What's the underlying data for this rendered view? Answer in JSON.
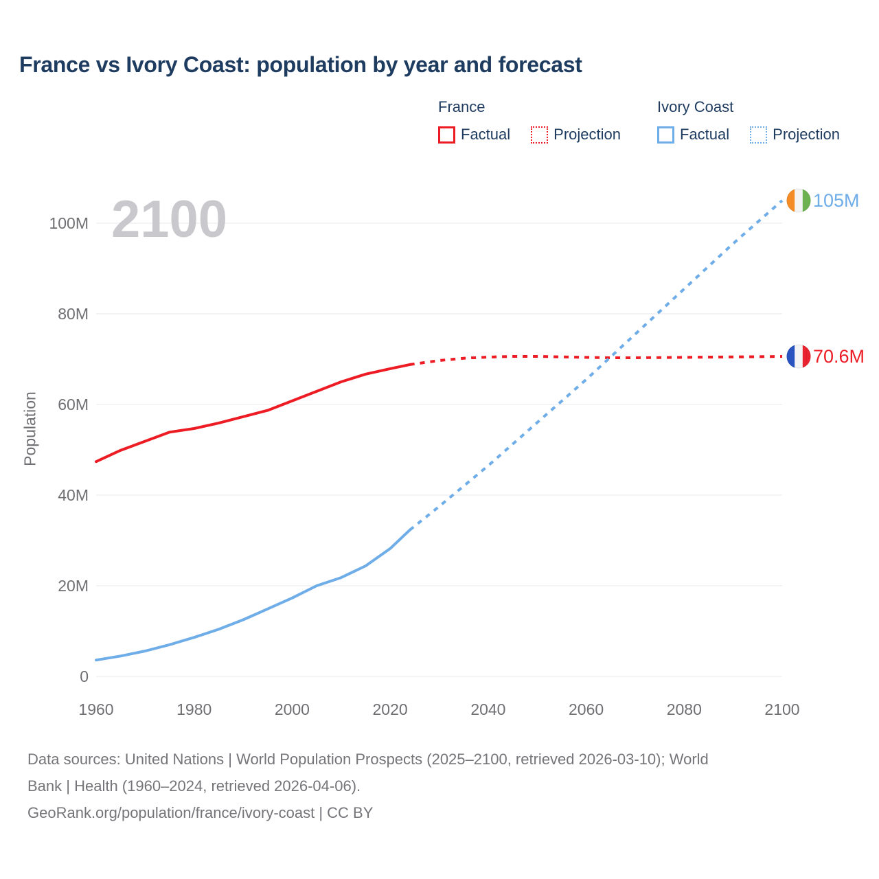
{
  "title": "France vs Ivory Coast: population by year and forecast",
  "legend": {
    "groups": [
      {
        "name": "France",
        "color": "#ed1c24",
        "items": [
          {
            "label": "Factual",
            "style": "solid"
          },
          {
            "label": "Projection",
            "style": "dotted"
          }
        ]
      },
      {
        "name": "Ivory Coast",
        "color": "#6fade8",
        "items": [
          {
            "label": "Factual",
            "style": "solid"
          },
          {
            "label": "Projection",
            "style": "dotted"
          }
        ]
      }
    ]
  },
  "chart_data": {
    "type": "line",
    "title": "France vs Ivory Coast: population by year and forecast",
    "xlabel": "",
    "ylabel": "Population",
    "unit": "millions of people",
    "watermark": "2100",
    "grid": true,
    "legend_position": "top-right",
    "xlim": [
      1960,
      2100
    ],
    "ylim": [
      0,
      100
    ],
    "x_ticks": [
      1960,
      1980,
      2000,
      2020,
      2040,
      2060,
      2080,
      2100
    ],
    "y_ticks": [
      {
        "value": 0,
        "label": "0"
      },
      {
        "value": 20,
        "label": "20M"
      },
      {
        "value": 40,
        "label": "40M"
      },
      {
        "value": 60,
        "label": "60M"
      },
      {
        "value": 80,
        "label": "80M"
      },
      {
        "value": 100,
        "label": "100M"
      }
    ],
    "series": [
      {
        "id": "france-factual",
        "name": "France Factual",
        "color": "#ed1c24",
        "style": "solid",
        "points": [
          [
            1960,
            47.4
          ],
          [
            1965,
            49.9
          ],
          [
            1970,
            51.9
          ],
          [
            1975,
            53.9
          ],
          [
            1980,
            54.7
          ],
          [
            1985,
            55.9
          ],
          [
            1990,
            57.3
          ],
          [
            1995,
            58.7
          ],
          [
            2000,
            60.8
          ],
          [
            2005,
            62.9
          ],
          [
            2010,
            65.0
          ],
          [
            2015,
            66.7
          ],
          [
            2020,
            67.9
          ],
          [
            2024,
            68.8
          ]
        ]
      },
      {
        "id": "france-projection",
        "name": "France Projection",
        "color": "#ed1c24",
        "style": "dotted",
        "points": [
          [
            2024,
            68.8
          ],
          [
            2030,
            69.7
          ],
          [
            2035,
            70.2
          ],
          [
            2040,
            70.45
          ],
          [
            2045,
            70.6
          ],
          [
            2050,
            70.6
          ],
          [
            2055,
            70.5
          ],
          [
            2060,
            70.4
          ],
          [
            2065,
            70.3
          ],
          [
            2070,
            70.3
          ],
          [
            2075,
            70.35
          ],
          [
            2080,
            70.4
          ],
          [
            2085,
            70.45
          ],
          [
            2090,
            70.5
          ],
          [
            2095,
            70.55
          ],
          [
            2100,
            70.6
          ]
        ]
      },
      {
        "id": "ivory-coast-factual",
        "name": "Ivory Coast Factual",
        "color": "#6fade8",
        "style": "solid",
        "points": [
          [
            1960,
            3.6
          ],
          [
            1965,
            4.5
          ],
          [
            1970,
            5.6
          ],
          [
            1975,
            7.0
          ],
          [
            1980,
            8.6
          ],
          [
            1985,
            10.4
          ],
          [
            1990,
            12.5
          ],
          [
            1995,
            14.9
          ],
          [
            2000,
            17.3
          ],
          [
            2005,
            20.0
          ],
          [
            2010,
            21.8
          ],
          [
            2015,
            24.4
          ],
          [
            2020,
            28.2
          ],
          [
            2024,
            32.3
          ]
        ]
      },
      {
        "id": "ivory-coast-projection",
        "name": "Ivory Coast Projection",
        "color": "#6fade8",
        "style": "dotted",
        "points": [
          [
            2024,
            32.3
          ],
          [
            2030,
            37.5
          ],
          [
            2040,
            46.5
          ],
          [
            2050,
            56.0
          ],
          [
            2060,
            65.5
          ],
          [
            2070,
            75.5
          ],
          [
            2080,
            85.5
          ],
          [
            2090,
            95.5
          ],
          [
            2100,
            105.0
          ]
        ]
      }
    ],
    "end_labels": [
      {
        "id": "ivory-coast",
        "text": "105M",
        "value": 105,
        "color": "#6fade8",
        "flag_colors": [
          "#f58c28",
          "#f4f4f4",
          "#6cb24e"
        ]
      },
      {
        "id": "france",
        "text": "70.6M",
        "value": 70.6,
        "color": "#ed1c24",
        "flag_colors": [
          "#2a52c0",
          "#f4f4f4",
          "#e8232f"
        ]
      }
    ]
  },
  "footer": {
    "lines": [
      "Data sources: United Nations | World Population Prospects (2025–2100, retrieved 2026-03-10); World",
      "Bank | Health (1960–2024, retrieved 2026-04-06).",
      "GeoRank.org/population/france/ivory-coast | CC BY"
    ]
  }
}
